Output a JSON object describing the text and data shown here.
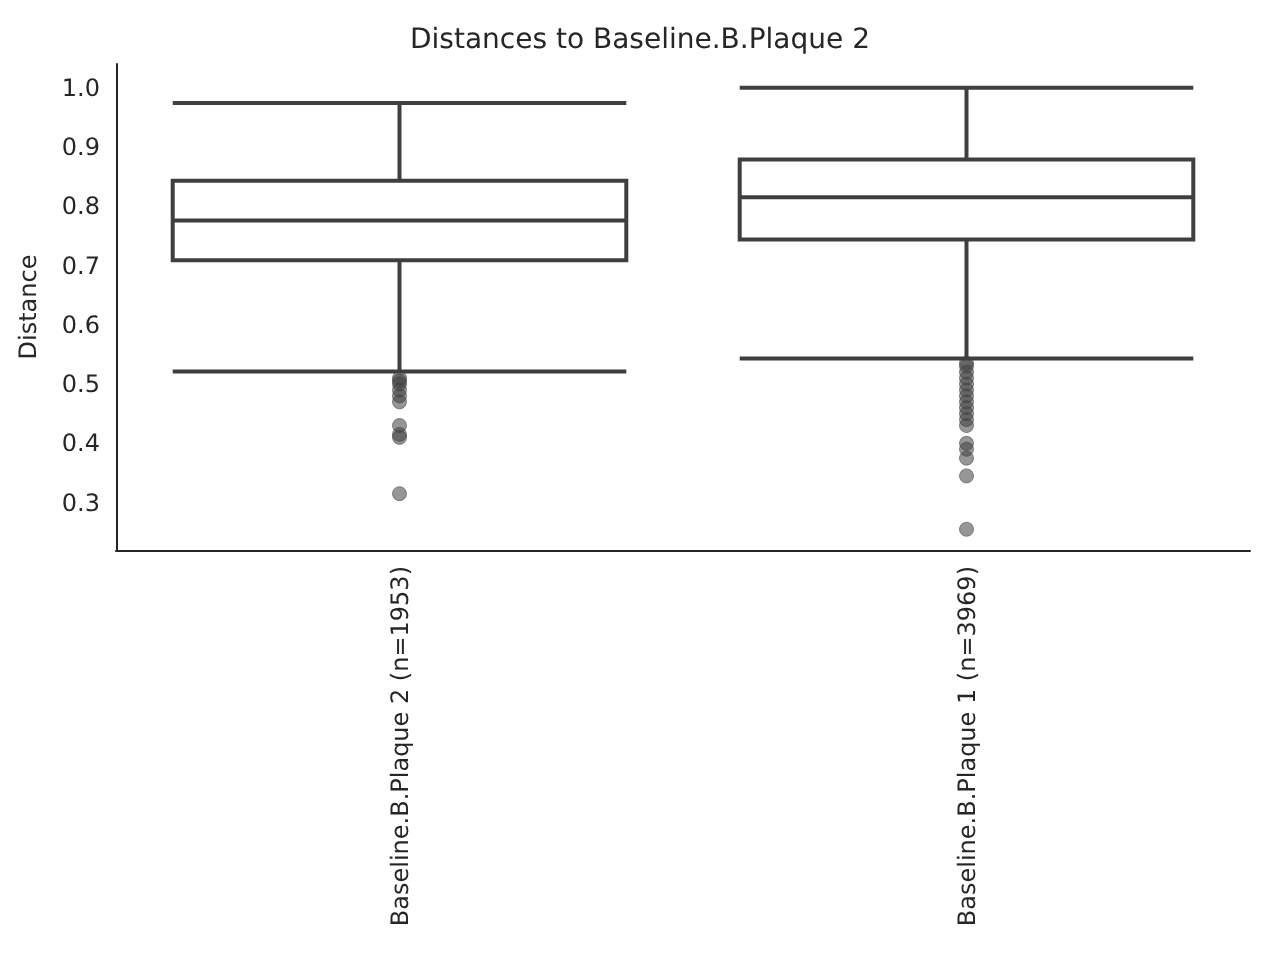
{
  "chart_data": {
    "type": "box",
    "title": "Distances to Baseline.B.Plaque 2",
    "ylabel": "Distance",
    "categories": [
      "Baseline.B.Plaque 2 (n=1953)",
      "Baseline.B.Plaque 1 (n=3969)"
    ],
    "boxes": [
      {
        "low": 0.521,
        "q1": 0.709,
        "median": 0.776,
        "q3": 0.843,
        "high": 0.974,
        "outliers": [
          0.51,
          0.505,
          0.5,
          0.49,
          0.48,
          0.47,
          0.43,
          0.415,
          0.41,
          0.315
        ]
      },
      {
        "low": 0.543,
        "q1": 0.744,
        "median": 0.815,
        "q3": 0.879,
        "high": 1.0,
        "outliers": [
          0.535,
          0.53,
          0.52,
          0.51,
          0.5,
          0.49,
          0.48,
          0.47,
          0.46,
          0.45,
          0.44,
          0.43,
          0.4,
          0.39,
          0.375,
          0.345,
          0.255
        ]
      }
    ],
    "color": "#3f3f3f",
    "ylim": [
      0.22,
      1.04
    ],
    "yticks": [
      {
        "value": 0.3,
        "label": "0.3"
      },
      {
        "value": 0.4,
        "label": "0.4"
      },
      {
        "value": 0.5,
        "label": "0.5"
      },
      {
        "value": 0.6,
        "label": "0.6"
      },
      {
        "value": 0.7,
        "label": "0.7"
      },
      {
        "value": 0.8,
        "label": "0.8"
      },
      {
        "value": 0.9,
        "label": "0.9"
      },
      {
        "value": 1,
        "label": "1.0"
      }
    ],
    "grid": false
  }
}
